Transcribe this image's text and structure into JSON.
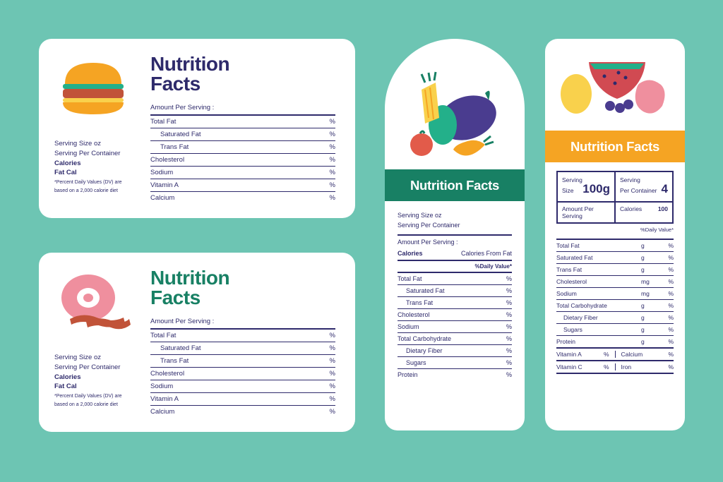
{
  "colors": {
    "background": "#6dc5b3",
    "card_bg": "#ffffff",
    "navy": "#2e2a6b",
    "green": "#188064",
    "orange": "#f5a423"
  },
  "card1": {
    "title_l1": "Nutrition",
    "title_l2": "Facts",
    "left": {
      "serving_size": "Serving Size oz",
      "serving_per": "Serving Per Container",
      "calories": "Calories",
      "fatcal": "Fat Cal",
      "note_l1": "*Percent Daily Values (DV) are",
      "note_l2": "based on a 2,000 calorie diet"
    },
    "amount_per_serving": "Amount Per Serving :",
    "rows": [
      {
        "label": "Total Fat",
        "val": "%",
        "indent": false
      },
      {
        "label": "Saturated Fat",
        "val": "%",
        "indent": true
      },
      {
        "label": "Trans Fat",
        "val": "%",
        "indent": true
      },
      {
        "label": "Cholesterol",
        "val": "%",
        "indent": false
      },
      {
        "label": "Sodium",
        "val": "%",
        "indent": false
      },
      {
        "label": "Vitamin A",
        "val": "%",
        "indent": false
      },
      {
        "label": "Calcium",
        "val": "%",
        "indent": false
      }
    ]
  },
  "card2": {
    "title_l1": "Nutrition",
    "title_l2": "Facts",
    "left": {
      "serving_size": "Serving Size oz",
      "serving_per": "Serving Per Container",
      "calories": "Calories",
      "fatcal": "Fat Cal",
      "note_l1": "*Percent Daily Values (DV) are",
      "note_l2": "based on a 2,000 calorie diet"
    },
    "amount_per_serving": "Amount Per Serving :",
    "rows": [
      {
        "label": "Total Fat",
        "val": "%",
        "indent": false
      },
      {
        "label": "Saturated Fat",
        "val": "%",
        "indent": true
      },
      {
        "label": "Trans Fat",
        "val": "%",
        "indent": true
      },
      {
        "label": "Cholesterol",
        "val": "%",
        "indent": false
      },
      {
        "label": "Sodium",
        "val": "%",
        "indent": false
      },
      {
        "label": "Vitamin A",
        "val": "%",
        "indent": false
      },
      {
        "label": "Calcium",
        "val": "%",
        "indent": false
      }
    ]
  },
  "card3": {
    "band": "Nutrition Facts",
    "serving_size": "Serving Size oz",
    "serving_per": "Serving Per Container",
    "amount_per_serving": "Amount Per Serving :",
    "calories_label": "Calories",
    "calories_from_fat": "Calories From Fat",
    "daily_value": "%Daily Value*",
    "rows": [
      {
        "label": "Total Fat",
        "val": "%",
        "indent": false
      },
      {
        "label": "Saturated Fat",
        "val": "%",
        "indent": true
      },
      {
        "label": "Trans Fat",
        "val": "%",
        "indent": true
      },
      {
        "label": "Cholesterol",
        "val": "%",
        "indent": false
      },
      {
        "label": "Sodium",
        "val": "%",
        "indent": false
      },
      {
        "label": "Total Carbohydrate",
        "val": "%",
        "indent": false
      },
      {
        "label": "Dietary Fiber",
        "val": "%",
        "indent": true
      },
      {
        "label": "Sugars",
        "val": "%",
        "indent": true
      },
      {
        "label": "Protein",
        "val": "%",
        "indent": false
      }
    ]
  },
  "card4": {
    "band": "Nutrition Facts",
    "top": {
      "serving_size_l1": "Serving",
      "serving_size_l2": "Size",
      "serving_size_val": "100g",
      "serving_per_l1": "Serving",
      "serving_per_l2": "Per Container",
      "serving_per_val": "4",
      "aps": "Amount Per Serving",
      "calories_label": "Calories",
      "calories_val": "100"
    },
    "daily_value": "%Daily Value*",
    "rows": [
      {
        "label": "Total Fat",
        "unit": "g",
        "val": "%",
        "indent": false
      },
      {
        "label": "Saturated Fat",
        "unit": "g",
        "val": "%",
        "indent": false
      },
      {
        "label": "Trans Fat",
        "unit": "g",
        "val": "%",
        "indent": false
      },
      {
        "label": "Cholesterol",
        "unit": "mg",
        "val": "%",
        "indent": false
      },
      {
        "label": "Sodium",
        "unit": "mg",
        "val": "%",
        "indent": false
      },
      {
        "label": "Total Carbohydrate",
        "unit": "g",
        "val": "%",
        "indent": false
      },
      {
        "label": "Dietary Fiber",
        "unit": "g",
        "val": "%",
        "indent": true
      },
      {
        "label": "Sugars",
        "unit": "g",
        "val": "%",
        "indent": true
      },
      {
        "label": "Protein",
        "unit": "g",
        "val": "%",
        "indent": false
      }
    ],
    "bottom": [
      {
        "l": "Vitamin A",
        "v": "%"
      },
      {
        "l": "Calcium",
        "v": "%"
      },
      {
        "l": "Vitamin C",
        "v": "%"
      },
      {
        "l": "Iron",
        "v": "%"
      }
    ]
  }
}
